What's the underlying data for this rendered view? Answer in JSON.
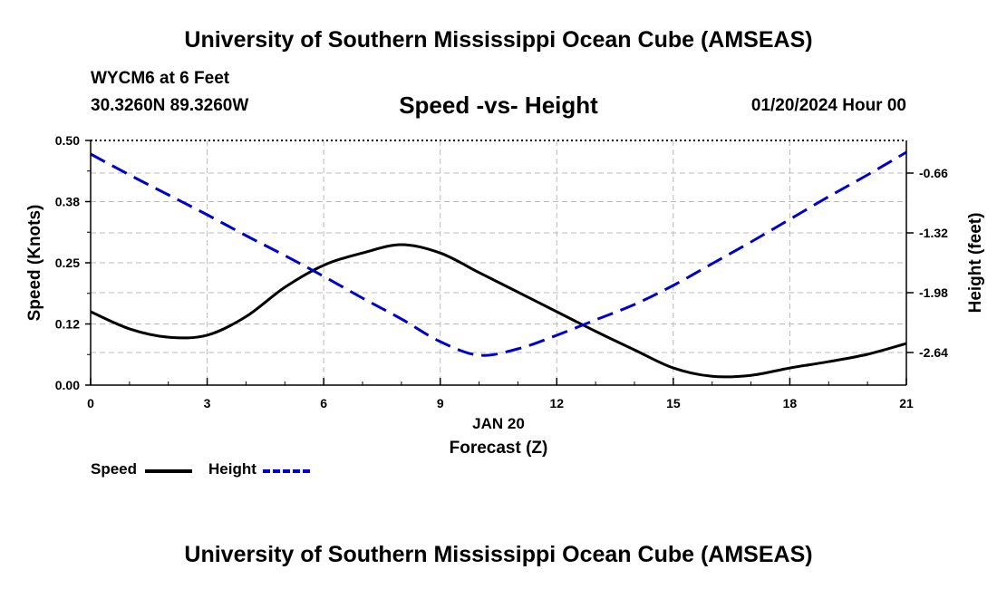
{
  "header": {
    "title": "University of Southern Mississippi Ocean Cube (AMSEAS)",
    "station": "WYCM6 at 6 Feet",
    "coords": "30.3260N  89.3260W",
    "chart_title": "Speed -vs- Height",
    "datetime": "01/20/2024 Hour 00"
  },
  "footer": {
    "title": "University of Southern Mississippi Ocean Cube (AMSEAS)"
  },
  "colors": {
    "speed": "#000000",
    "height": "#0000cc",
    "grid": "#bbbbbb"
  },
  "chart_data": {
    "type": "line",
    "title": "Speed -vs- Height",
    "xlabel": "Forecast (Z)",
    "xlabel_date": "JAN 20",
    "ylabel": "Speed (Knots)",
    "y2label": "Height (feet)",
    "xlim": [
      0,
      21
    ],
    "ylim": [
      0,
      0.5
    ],
    "y2lim": [
      -3.0,
      -0.3
    ],
    "x_ticks": [
      0,
      3,
      6,
      9,
      12,
      15,
      18,
      21
    ],
    "x_tick_labels": [
      "0",
      "3",
      "6",
      "9",
      "12",
      "15",
      "18",
      "21"
    ],
    "y_ticks": [
      0,
      0.125,
      0.25,
      0.375,
      0.5
    ],
    "y_tick_labels": [
      "0.00",
      "0.12",
      "0.25",
      "0.38",
      "0.50"
    ],
    "y2_ticks": [
      -0.66,
      -1.32,
      -1.98,
      -2.64
    ],
    "y2_tick_labels": [
      "-0.66",
      "-1.32",
      "-1.98",
      "-2.64"
    ],
    "grid": true,
    "legend_position": "bottom-left",
    "series": [
      {
        "name": "Speed",
        "axis": "left",
        "style": "solid",
        "x": [
          0,
          1,
          2,
          3,
          4,
          5,
          6,
          7,
          8,
          9,
          10,
          11,
          12,
          13,
          14,
          15,
          16,
          17,
          18,
          19,
          20,
          21
        ],
        "values": [
          0.15,
          0.115,
          0.098,
          0.102,
          0.14,
          0.2,
          0.245,
          0.27,
          0.287,
          0.27,
          0.23,
          0.19,
          0.15,
          0.11,
          0.072,
          0.035,
          0.018,
          0.02,
          0.035,
          0.048,
          0.063,
          0.085
        ]
      },
      {
        "name": "Height",
        "axis": "right",
        "style": "dashed",
        "x": [
          0,
          1,
          2,
          3,
          4,
          5,
          6,
          7,
          8,
          9,
          10,
          11,
          12,
          13,
          14,
          15,
          16,
          17,
          18,
          19,
          20,
          21
        ],
        "values": [
          -0.45,
          -0.68,
          -0.9,
          -1.12,
          -1.35,
          -1.57,
          -1.8,
          -2.04,
          -2.27,
          -2.52,
          -2.67,
          -2.6,
          -2.45,
          -2.28,
          -2.11,
          -1.9,
          -1.66,
          -1.42,
          -1.17,
          -0.92,
          -0.68,
          -0.43
        ]
      }
    ]
  },
  "legend": {
    "items": [
      {
        "label": "Speed",
        "color": "#000000",
        "style": "solid"
      },
      {
        "label": "Height",
        "color": "#0000cc",
        "style": "dashed"
      }
    ]
  }
}
